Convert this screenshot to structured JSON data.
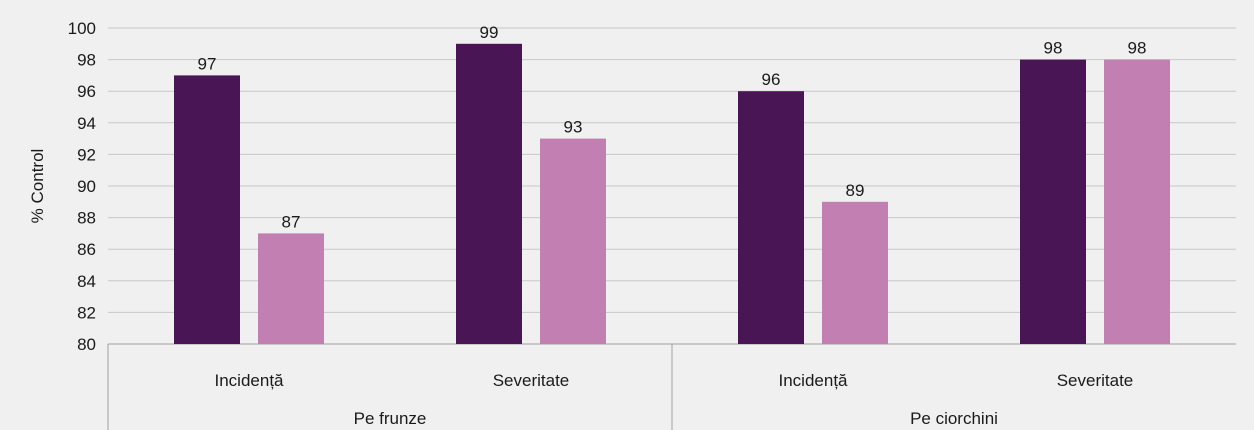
{
  "chart_data": {
    "type": "bar",
    "title": "",
    "xlabel": "",
    "ylabel": "% Control",
    "ylim": [
      80,
      100
    ],
    "yticks": [
      80,
      82,
      84,
      86,
      88,
      90,
      92,
      94,
      96,
      98,
      100
    ],
    "grid": true,
    "groups": [
      {
        "label": "Pe frunze",
        "categories": [
          "Incidență",
          "Severitate"
        ]
      },
      {
        "label": "Pe ciorchini",
        "categories": [
          "Incidență",
          "Severitate"
        ]
      }
    ],
    "categories": [
      "Incidență",
      "Severitate",
      "Incidență",
      "Severitate"
    ],
    "series": [
      {
        "color": "#4a1554",
        "values": [
          97,
          99,
          96,
          98
        ]
      },
      {
        "color": "#c27fb2",
        "values": [
          87,
          93,
          89,
          98
        ]
      }
    ],
    "colors": {
      "grid": "#c8c8c8",
      "axis": "#a0a0a0",
      "text": "#1a1a1a",
      "background": "#f0f0f1"
    }
  }
}
